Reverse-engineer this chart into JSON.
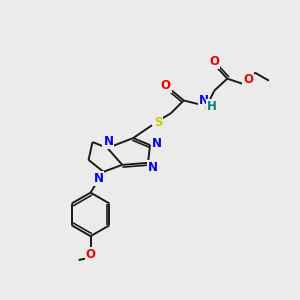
{
  "background_color": "#ebebeb",
  "bond_color": "#1a1a1a",
  "atom_colors": {
    "N": "#0000ee",
    "O": "#ee0000",
    "S": "#cccc00",
    "H": "#008080",
    "C": "#1a1a1a"
  },
  "figsize": [
    3.0,
    3.0
  ],
  "dpi": 100,
  "lw": 1.4,
  "fs": 8.5
}
